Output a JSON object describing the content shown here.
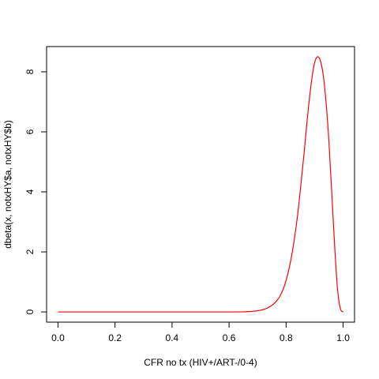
{
  "chart_data": {
    "type": "line",
    "title": "",
    "xlabel": "CFR no tx (HIV+/ART-/0-4)",
    "ylabel": "dbeta(x, notxHY$a, notxHY$b)",
    "xlim": [
      -0.04,
      1.04
    ],
    "ylim": [
      -0.34,
      8.84
    ],
    "x_ticks": [
      0.0,
      0.2,
      0.4,
      0.6,
      0.8,
      1.0
    ],
    "x_tick_labels": [
      "0.0",
      "0.2",
      "0.4",
      "0.6",
      "0.8",
      "1.0"
    ],
    "y_ticks": [
      0,
      2,
      4,
      6,
      8
    ],
    "y_tick_labels": [
      "0",
      "2",
      "4",
      "6",
      "8"
    ],
    "grid": false,
    "series": [
      {
        "color": "#ff0000",
        "x": [
          0.0,
          0.1,
          0.2,
          0.3,
          0.4,
          0.5,
          0.6,
          0.65,
          0.68,
          0.7,
          0.72,
          0.74,
          0.76,
          0.78,
          0.8,
          0.82,
          0.84,
          0.86,
          0.87,
          0.88,
          0.89,
          0.9,
          0.91,
          0.92,
          0.93,
          0.94,
          0.95,
          0.96,
          0.97,
          0.98,
          0.99,
          1.0
        ],
        "y": [
          0,
          0,
          0,
          0,
          0,
          0,
          0,
          0.004,
          0.02,
          0.04,
          0.08,
          0.16,
          0.3,
          0.55,
          1.05,
          1.9,
          3.2,
          5.0,
          6.0,
          6.95,
          7.75,
          8.3,
          8.5,
          8.38,
          7.9,
          7.0,
          5.7,
          4.0,
          2.25,
          0.8,
          0.12,
          0
        ]
      }
    ]
  }
}
